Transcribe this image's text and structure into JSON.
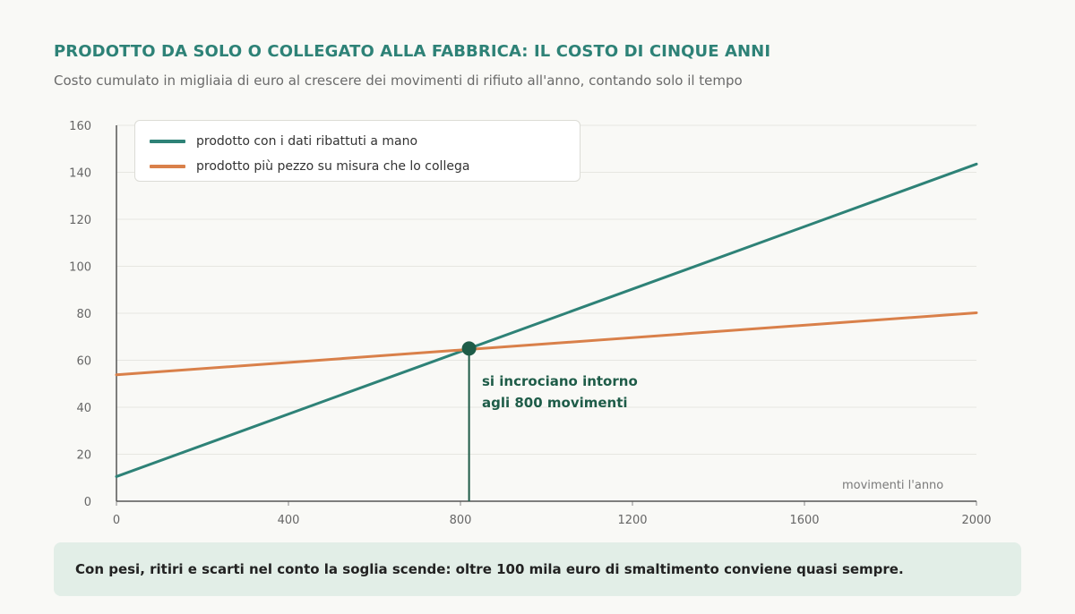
{
  "header": {
    "title": "PRODOTTO DA SOLO O COLLEGATO ALLA FABBRICA: IL COSTO DI CINQUE ANNI",
    "subtitle": "Costo cumulato in migliaia di euro al crescere dei movimenti di rifiuto all'anno, contando solo il tempo"
  },
  "chart_data": {
    "type": "line",
    "title": "PRODOTTO DA SOLO O COLLEGATO ALLA FABBRICA: IL COSTO DI CINQUE ANNI",
    "subtitle": "Costo cumulato in migliaia di euro al crescere dei movimenti di rifiuto all'anno, contando solo il tempo",
    "xlabel": "movimenti l'anno",
    "ylabel": "",
    "xlim": [
      0,
      2000
    ],
    "ylim": [
      0,
      160
    ],
    "x_ticks": [
      0,
      400,
      800,
      1200,
      1600,
      2000
    ],
    "y_ticks": [
      0,
      20,
      40,
      60,
      80,
      100,
      120,
      140,
      160
    ],
    "grid": true,
    "legend_position": "top-left",
    "series": [
      {
        "name": "prodotto con i dati ribattuti a mano",
        "color": "#2e8277",
        "x": [
          0,
          2000
        ],
        "y": [
          10.5,
          143.5
        ]
      },
      {
        "name": "prodotto più pezzo su misura che lo collega",
        "color": "#d9804a",
        "x": [
          0,
          2000
        ],
        "y": [
          53.8,
          80.2
        ]
      }
    ],
    "annotations": [
      {
        "x": 820,
        "y": 65,
        "line1": "si incrociano intorno",
        "line2": "agli 800 movimenti",
        "color": "#1e5c48"
      }
    ]
  },
  "footer": {
    "note": "Con pesi, ritiri e scarti nel conto la soglia scende: oltre 100 mila euro di smaltimento conviene quasi sempre."
  }
}
